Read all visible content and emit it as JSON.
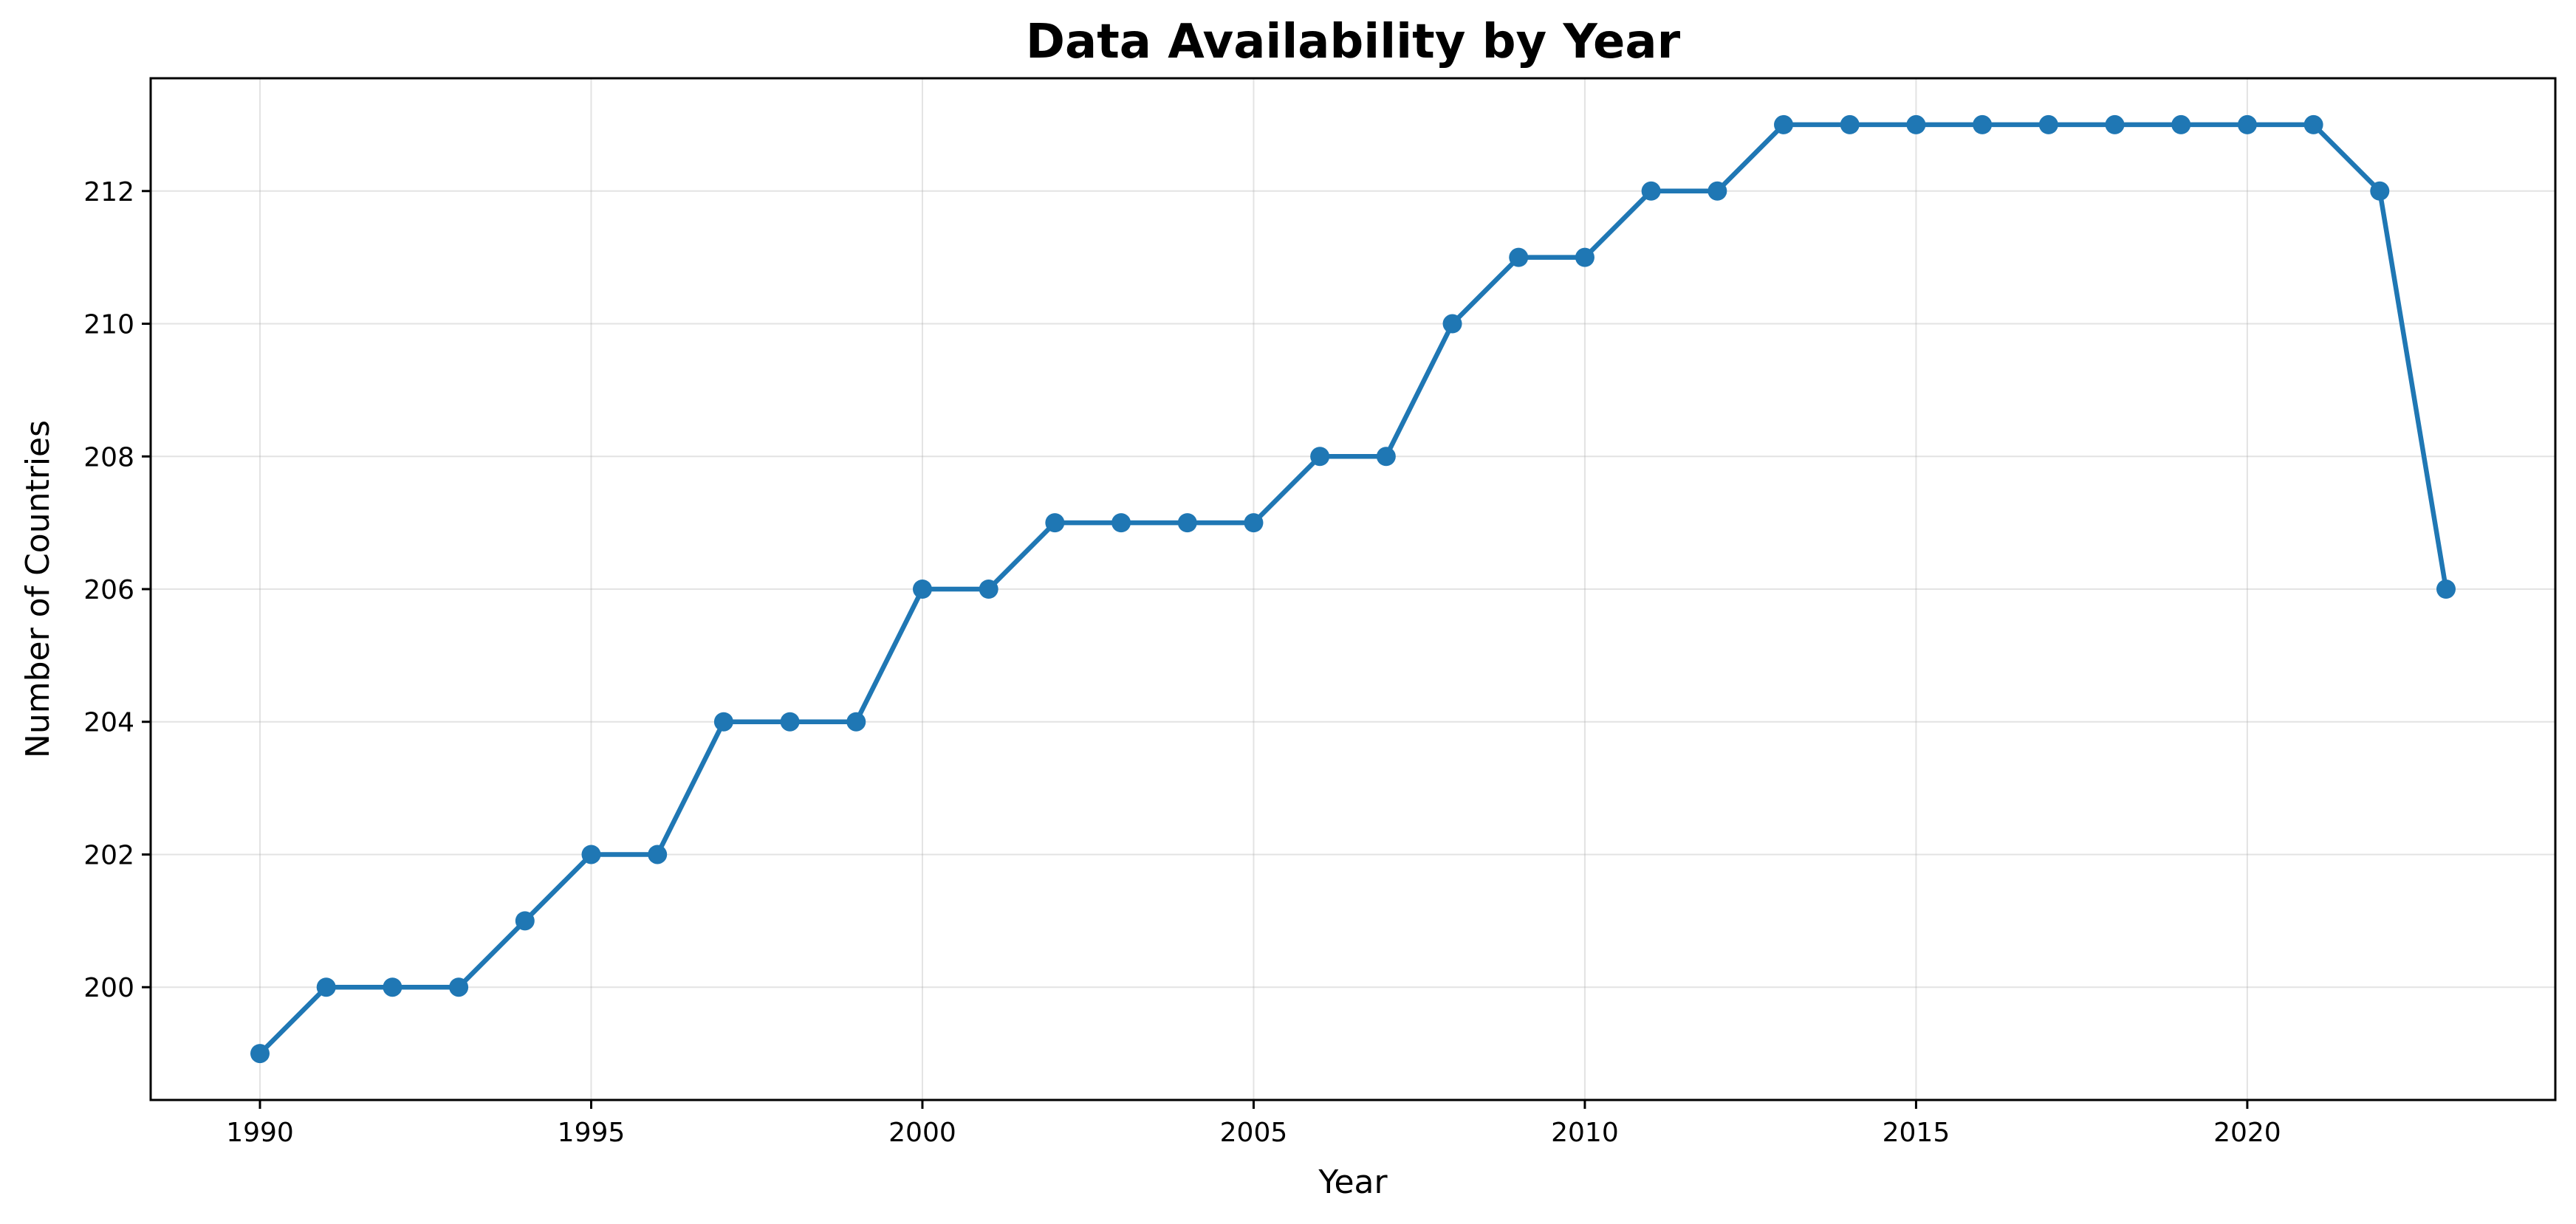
{
  "chart_data": {
    "type": "line",
    "title": "Data Availability by Year",
    "xlabel": "Year",
    "ylabel": "Number of Countries",
    "xlim": [
      1988.35,
      2024.65
    ],
    "ylim": [
      198.3,
      213.7
    ],
    "xticks": [
      1990,
      1995,
      2000,
      2005,
      2010,
      2015,
      2020
    ],
    "yticks": [
      200,
      202,
      204,
      206,
      208,
      210,
      212
    ],
    "grid": true,
    "series": [
      {
        "color": "#1f77b4",
        "marker": "circle",
        "x": [
          1990,
          1991,
          1992,
          1993,
          1994,
          1995,
          1996,
          1997,
          1998,
          1999,
          2000,
          2001,
          2002,
          2003,
          2004,
          2005,
          2006,
          2007,
          2008,
          2009,
          2010,
          2011,
          2012,
          2013,
          2014,
          2015,
          2016,
          2017,
          2018,
          2019,
          2020,
          2021,
          2022,
          2023
        ],
        "y": [
          199,
          200,
          200,
          200,
          201,
          202,
          202,
          204,
          204,
          204,
          206,
          206,
          207,
          207,
          207,
          207,
          208,
          208,
          210,
          211,
          211,
          212,
          212,
          213,
          213,
          213,
          213,
          213,
          213,
          213,
          213,
          213,
          212,
          206
        ]
      }
    ]
  }
}
